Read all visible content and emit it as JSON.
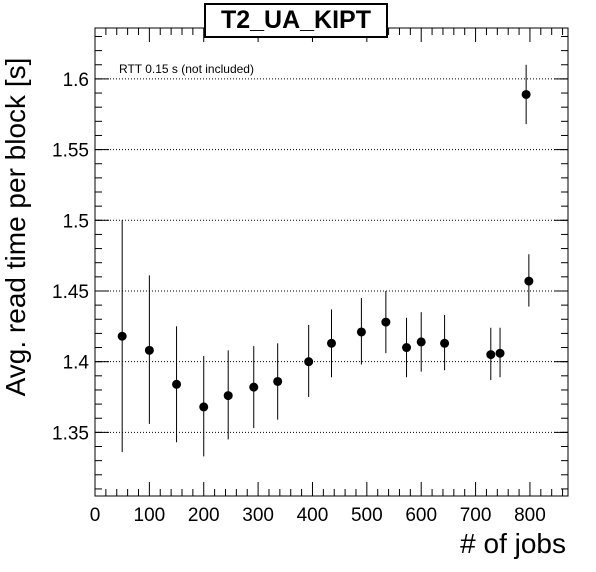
{
  "chart_data": {
    "type": "scatter",
    "title": "T2_UA_KIPT",
    "xlabel": "# of jobs",
    "ylabel": "Avg. read time per block [s]",
    "annotation": "RTT 0.15 s (not included)",
    "xlim": [
      0,
      870
    ],
    "ylim": [
      1.305,
      1.636
    ],
    "x_ticks": [
      0,
      100,
      200,
      300,
      400,
      500,
      600,
      700,
      800
    ],
    "y_ticks": [
      1.35,
      1.4,
      1.45,
      1.5,
      1.55,
      1.6
    ],
    "y_tick_labels": [
      "1.35",
      "1.4",
      "1.45",
      "1.5",
      "1.55",
      "1.6"
    ],
    "grid": "horizontal dotted",
    "series": [
      {
        "points": [
          {
            "x": 50,
            "y": 1.418,
            "ylo": 1.336,
            "yhi": 1.5
          },
          {
            "x": 100,
            "y": 1.408,
            "ylo": 1.356,
            "yhi": 1.461
          },
          {
            "x": 150,
            "y": 1.384,
            "ylo": 1.343,
            "yhi": 1.425
          },
          {
            "x": 200,
            "y": 1.368,
            "ylo": 1.333,
            "yhi": 1.404
          },
          {
            "x": 245,
            "y": 1.376,
            "ylo": 1.345,
            "yhi": 1.408
          },
          {
            "x": 292,
            "y": 1.382,
            "ylo": 1.353,
            "yhi": 1.411
          },
          {
            "x": 336,
            "y": 1.386,
            "ylo": 1.359,
            "yhi": 1.413
          },
          {
            "x": 393,
            "y": 1.4,
            "ylo": 1.375,
            "yhi": 1.426
          },
          {
            "x": 435,
            "y": 1.413,
            "ylo": 1.389,
            "yhi": 1.437
          },
          {
            "x": 490,
            "y": 1.421,
            "ylo": 1.398,
            "yhi": 1.445
          },
          {
            "x": 535,
            "y": 1.428,
            "ylo": 1.406,
            "yhi": 1.45
          },
          {
            "x": 573,
            "y": 1.41,
            "ylo": 1.389,
            "yhi": 1.431
          },
          {
            "x": 600,
            "y": 1.414,
            "ylo": 1.393,
            "yhi": 1.435
          },
          {
            "x": 643,
            "y": 1.413,
            "ylo": 1.394,
            "yhi": 1.433
          },
          {
            "x": 728,
            "y": 1.405,
            "ylo": 1.387,
            "yhi": 1.424
          },
          {
            "x": 745,
            "y": 1.406,
            "ylo": 1.389,
            "yhi": 1.424
          },
          {
            "x": 793,
            "y": 1.589,
            "ylo": 1.568,
            "yhi": 1.61
          },
          {
            "x": 798,
            "y": 1.457,
            "ylo": 1.439,
            "yhi": 1.476
          }
        ]
      }
    ]
  }
}
